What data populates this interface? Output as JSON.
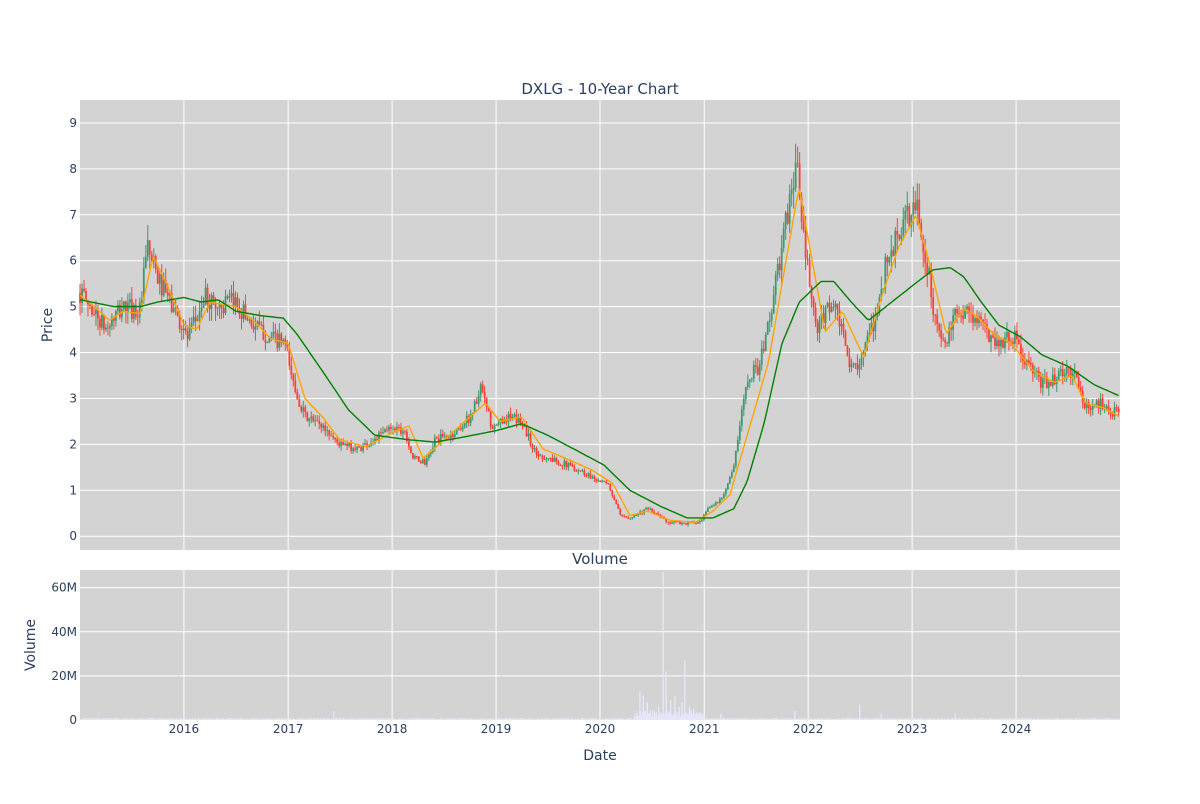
{
  "colors": {
    "plot_bg": "#d3d3d3",
    "grid": "#ffffff",
    "text": "#2a3f5f",
    "candle_up": "#3d9970",
    "candle_down": "#ff4136",
    "ma_short": "#ffa500",
    "ma_long": "#008000",
    "volume": "#e6e6fa"
  },
  "chart_data": [
    {
      "type": "candlestick",
      "title": "DXLG - 10-Year Chart",
      "ylabel": "Price",
      "xlim": [
        "2015-01-01",
        "2024-12-31"
      ],
      "ylim": [
        -0.3,
        9.5
      ],
      "yticks": [
        0,
        1,
        2,
        3,
        4,
        5,
        6,
        7,
        8,
        9
      ],
      "grid": true,
      "price_anchors": [
        [
          "2015-01-01",
          5.3
        ],
        [
          "2015-03-01",
          4.8
        ],
        [
          "2015-04-01",
          4.5
        ],
        [
          "2015-06-01",
          5.0
        ],
        [
          "2015-08-01",
          4.9
        ],
        [
          "2015-08-25",
          6.3
        ],
        [
          "2015-10-01",
          5.6
        ],
        [
          "2015-12-01",
          4.9
        ],
        [
          "2016-01-15",
          4.3
        ],
        [
          "2016-03-15",
          5.2
        ],
        [
          "2016-05-01",
          5.0
        ],
        [
          "2016-07-01",
          5.1
        ],
        [
          "2016-09-01",
          4.6
        ],
        [
          "2016-11-01",
          4.3
        ],
        [
          "2016-12-20",
          4.2
        ],
        [
          "2017-01-20",
          3.3
        ],
        [
          "2017-03-01",
          2.6
        ],
        [
          "2017-05-01",
          2.4
        ],
        [
          "2017-07-01",
          2.0
        ],
        [
          "2017-09-01",
          1.9
        ],
        [
          "2017-11-01",
          2.1
        ],
        [
          "2018-01-01",
          2.4
        ],
        [
          "2018-02-15",
          2.3
        ],
        [
          "2018-03-15",
          1.7
        ],
        [
          "2018-05-01",
          1.6
        ],
        [
          "2018-06-01",
          2.1
        ],
        [
          "2018-08-01",
          2.2
        ],
        [
          "2018-10-01",
          2.6
        ],
        [
          "2018-11-10",
          3.2
        ],
        [
          "2018-12-20",
          2.3
        ],
        [
          "2019-02-01",
          2.6
        ],
        [
          "2019-04-01",
          2.5
        ],
        [
          "2019-05-20",
          1.8
        ],
        [
          "2019-07-01",
          1.7
        ],
        [
          "2019-10-01",
          1.5
        ],
        [
          "2019-12-01",
          1.3
        ],
        [
          "2020-02-01",
          1.1
        ],
        [
          "2020-03-15",
          0.4
        ],
        [
          "2020-05-01",
          0.45
        ],
        [
          "2020-06-15",
          0.6
        ],
        [
          "2020-09-01",
          0.3
        ],
        [
          "2020-11-01",
          0.28
        ],
        [
          "2020-12-20",
          0.3
        ],
        [
          "2021-01-15",
          0.6
        ],
        [
          "2021-03-01",
          0.8
        ],
        [
          "2021-04-15",
          1.5
        ],
        [
          "2021-06-01",
          3.5
        ],
        [
          "2021-07-15",
          3.7
        ],
        [
          "2021-09-01",
          5.2
        ],
        [
          "2021-10-15",
          6.8
        ],
        [
          "2021-11-20",
          8.2
        ],
        [
          "2021-12-15",
          6.5
        ],
        [
          "2022-01-05",
          5.5
        ],
        [
          "2022-02-01",
          4.4
        ],
        [
          "2022-03-15",
          5.1
        ],
        [
          "2022-04-15",
          4.8
        ],
        [
          "2022-06-01",
          3.6
        ],
        [
          "2022-07-15",
          4.0
        ],
        [
          "2022-08-20",
          4.6
        ],
        [
          "2022-10-01",
          5.9
        ],
        [
          "2022-11-15",
          6.6
        ],
        [
          "2023-01-15",
          7.2
        ],
        [
          "2023-02-20",
          6.0
        ],
        [
          "2023-04-01",
          4.4
        ],
        [
          "2023-05-01",
          4.2
        ],
        [
          "2023-06-15",
          5.0
        ],
        [
          "2023-08-01",
          4.8
        ],
        [
          "2023-09-15",
          4.5
        ],
        [
          "2023-11-01",
          4.2
        ],
        [
          "2023-12-20",
          4.4
        ],
        [
          "2024-02-01",
          3.8
        ],
        [
          "2024-04-01",
          3.3
        ],
        [
          "2024-06-01",
          3.5
        ],
        [
          "2024-07-20",
          3.6
        ],
        [
          "2024-09-01",
          2.8
        ],
        [
          "2024-11-01",
          2.9
        ],
        [
          "2024-12-31",
          2.6
        ]
      ],
      "ma_short_anchors": [
        [
          "2015-01-01",
          5.25
        ],
        [
          "2015-03-01",
          4.95
        ],
        [
          "2015-04-15",
          4.7
        ],
        [
          "2015-06-01",
          4.9
        ],
        [
          "2015-08-01",
          4.85
        ],
        [
          "2015-09-15",
          6.1
        ],
        [
          "2015-11-01",
          5.5
        ],
        [
          "2016-01-01",
          4.6
        ],
        [
          "2016-02-15",
          4.5
        ],
        [
          "2016-04-01",
          5.1
        ],
        [
          "2016-07-01",
          5.0
        ],
        [
          "2016-09-01",
          4.7
        ],
        [
          "2016-11-01",
          4.3
        ],
        [
          "2017-01-01",
          4.2
        ],
        [
          "2017-03-01",
          3.0
        ],
        [
          "2017-05-01",
          2.6
        ],
        [
          "2017-07-01",
          2.1
        ],
        [
          "2017-10-01",
          1.95
        ],
        [
          "2018-01-15",
          2.3
        ],
        [
          "2018-03-01",
          2.4
        ],
        [
          "2018-04-20",
          1.7
        ],
        [
          "2018-06-15",
          2.0
        ],
        [
          "2018-10-01",
          2.6
        ],
        [
          "2018-11-25",
          2.9
        ],
        [
          "2019-01-15",
          2.5
        ],
        [
          "2019-04-01",
          2.6
        ],
        [
          "2019-06-15",
          1.9
        ],
        [
          "2019-09-01",
          1.7
        ],
        [
          "2019-12-01",
          1.45
        ],
        [
          "2020-02-15",
          1.15
        ],
        [
          "2020-04-15",
          0.45
        ],
        [
          "2020-06-15",
          0.55
        ],
        [
          "2020-09-01",
          0.35
        ],
        [
          "2020-12-01",
          0.3
        ],
        [
          "2021-02-01",
          0.55
        ],
        [
          "2021-04-01",
          0.9
        ],
        [
          "2021-06-15",
          2.5
        ],
        [
          "2021-08-15",
          3.8
        ],
        [
          "2021-10-15",
          6.0
        ],
        [
          "2021-11-30",
          7.6
        ],
        [
          "2022-01-15",
          6.0
        ],
        [
          "2022-03-01",
          4.45
        ],
        [
          "2022-05-01",
          4.9
        ],
        [
          "2022-07-15",
          3.9
        ],
        [
          "2022-09-15",
          5.2
        ],
        [
          "2022-11-15",
          6.3
        ],
        [
          "2023-01-15",
          7.0
        ],
        [
          "2023-03-01",
          6.0
        ],
        [
          "2023-05-01",
          4.4
        ],
        [
          "2023-06-30",
          4.95
        ],
        [
          "2023-08-15",
          4.8
        ],
        [
          "2023-10-15",
          4.4
        ],
        [
          "2023-12-15",
          4.2
        ],
        [
          "2024-03-01",
          3.6
        ],
        [
          "2024-05-15",
          3.35
        ],
        [
          "2024-07-15",
          3.5
        ],
        [
          "2024-09-01",
          2.9
        ],
        [
          "2024-11-01",
          2.8
        ],
        [
          "2024-12-31",
          2.6
        ]
      ],
      "ma_long_anchors": [
        [
          "2015-01-01",
          5.15
        ],
        [
          "2015-05-01",
          5.0
        ],
        [
          "2015-08-01",
          5.0
        ],
        [
          "2015-10-01",
          5.1
        ],
        [
          "2016-01-01",
          5.2
        ],
        [
          "2016-03-01",
          5.1
        ],
        [
          "2016-05-01",
          5.15
        ],
        [
          "2016-07-01",
          4.9
        ],
        [
          "2016-10-01",
          4.8
        ],
        [
          "2016-12-15",
          4.75
        ],
        [
          "2017-02-01",
          4.4
        ],
        [
          "2017-05-01",
          3.6
        ],
        [
          "2017-08-01",
          2.75
        ],
        [
          "2017-11-01",
          2.2
        ],
        [
          "2018-03-01",
          2.1
        ],
        [
          "2018-06-01",
          2.05
        ],
        [
          "2018-09-01",
          2.15
        ],
        [
          "2019-01-01",
          2.3
        ],
        [
          "2019-04-01",
          2.45
        ],
        [
          "2019-07-01",
          2.2
        ],
        [
          "2019-10-01",
          1.9
        ],
        [
          "2020-01-15",
          1.55
        ],
        [
          "2020-04-15",
          1.0
        ],
        [
          "2020-08-01",
          0.65
        ],
        [
          "2020-11-01",
          0.4
        ],
        [
          "2021-02-01",
          0.4
        ],
        [
          "2021-04-15",
          0.6
        ],
        [
          "2021-06-01",
          1.2
        ],
        [
          "2021-08-01",
          2.5
        ],
        [
          "2021-10-01",
          4.2
        ],
        [
          "2021-12-01",
          5.1
        ],
        [
          "2022-02-15",
          5.55
        ],
        [
          "2022-04-01",
          5.55
        ],
        [
          "2022-06-01",
          5.1
        ],
        [
          "2022-08-01",
          4.7
        ],
        [
          "2022-10-01",
          5.0
        ],
        [
          "2023-01-01",
          5.45
        ],
        [
          "2023-03-15",
          5.8
        ],
        [
          "2023-05-15",
          5.85
        ],
        [
          "2023-07-01",
          5.65
        ],
        [
          "2023-09-01",
          5.1
        ],
        [
          "2023-11-01",
          4.6
        ],
        [
          "2024-01-15",
          4.35
        ],
        [
          "2024-04-01",
          3.95
        ],
        [
          "2024-07-01",
          3.7
        ],
        [
          "2024-10-01",
          3.3
        ],
        [
          "2024-12-31",
          3.05
        ]
      ]
    },
    {
      "type": "bar",
      "title": "Volume",
      "xlabel": "Date",
      "ylabel": "Volume",
      "xlim": [
        "2015-01-01",
        "2024-12-31"
      ],
      "ylim": [
        0,
        68000000
      ],
      "yticks": [
        0,
        20000000,
        40000000,
        60000000
      ],
      "ytick_labels": [
        "0",
        "20M",
        "40M",
        "60M"
      ],
      "xticks": [
        "2016-01-01",
        "2017-01-01",
        "2018-01-01",
        "2019-01-01",
        "2020-01-01",
        "2021-01-01",
        "2022-01-01",
        "2023-01-01",
        "2024-01-01"
      ],
      "xtick_labels": [
        "2016",
        "2017",
        "2018",
        "2019",
        "2020",
        "2021",
        "2022",
        "2023",
        "2024"
      ],
      "grid": true,
      "volume_spikes": [
        [
          "2017-06-10",
          4000000
        ],
        [
          "2020-05-20",
          13000000
        ],
        [
          "2020-06-01",
          11000000
        ],
        [
          "2020-06-15",
          8000000
        ],
        [
          "2020-07-10",
          4000000
        ],
        [
          "2020-07-25",
          6000000
        ],
        [
          "2020-08-10",
          67000000
        ],
        [
          "2020-08-20",
          22000000
        ],
        [
          "2020-09-05",
          9000000
        ],
        [
          "2020-09-20",
          11000000
        ],
        [
          "2020-10-05",
          6000000
        ],
        [
          "2020-10-15",
          8000000
        ],
        [
          "2020-10-25",
          27000000
        ],
        [
          "2020-11-10",
          6000000
        ],
        [
          "2020-11-25",
          5000000
        ],
        [
          "2021-03-01",
          3000000
        ],
        [
          "2021-11-15",
          4000000
        ],
        [
          "2022-07-01",
          7000000
        ],
        [
          "2022-09-15",
          3000000
        ],
        [
          "2023-06-01",
          3000000
        ]
      ]
    }
  ]
}
